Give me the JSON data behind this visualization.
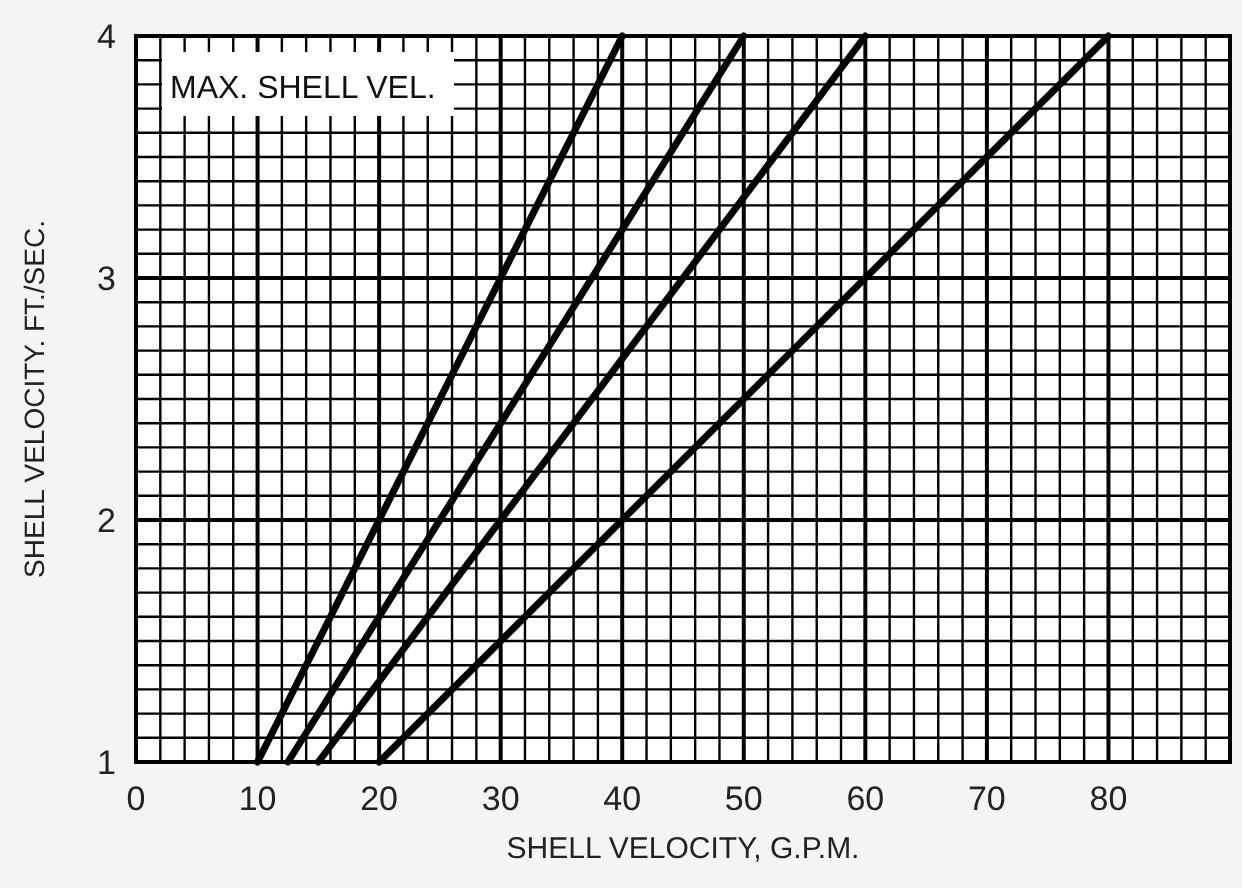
{
  "chart_data": {
    "type": "line",
    "xlabel": "SHELL VELOCITY, G.P.M.",
    "ylabel": "SHELL VELOCITY. FT./SEC.",
    "annotations": [
      "MAX. SHELL VEL."
    ],
    "xlim": [
      0,
      90
    ],
    "ylim": [
      1,
      4
    ],
    "xticks": [
      0,
      {
        "value": 2,
        "label": null
      },
      {
        "value": 4,
        "label": null
      },
      {
        "value": 6,
        "label": null
      },
      {
        "value": 8,
        "label": null
      },
      10,
      {
        "value": 12,
        "label": null
      },
      {
        "value": 14,
        "label": null
      },
      {
        "value": 16,
        "label": null
      },
      {
        "value": 18,
        "label": null
      },
      20,
      {
        "value": 22,
        "label": null
      },
      {
        "value": 24,
        "label": null
      },
      {
        "value": 26,
        "label": null
      },
      {
        "value": 28,
        "label": null
      },
      30,
      {
        "value": 32,
        "label": null
      },
      {
        "value": 34,
        "label": null
      },
      {
        "value": 36,
        "label": null
      },
      {
        "value": 38,
        "label": null
      },
      40,
      {
        "value": 42,
        "label": null
      },
      {
        "value": 44,
        "label": null
      },
      {
        "value": 46,
        "label": null
      },
      {
        "value": 48,
        "label": null
      },
      50,
      {
        "value": 52,
        "label": null
      },
      {
        "value": 54,
        "label": null
      },
      {
        "value": 56,
        "label": null
      },
      {
        "value": 58,
        "label": null
      },
      60,
      {
        "value": 62,
        "label": null
      },
      {
        "value": 64,
        "label": null
      },
      {
        "value": 66,
        "label": null
      },
      {
        "value": 68,
        "label": null
      },
      70,
      {
        "value": 72,
        "label": null
      },
      {
        "value": 74,
        "label": null
      },
      {
        "value": 76,
        "label": null
      },
      {
        "value": 78,
        "label": null
      },
      80,
      {
        "value": 82,
        "label": null
      },
      {
        "value": 84,
        "label": null
      },
      {
        "value": 86,
        "label": null
      },
      {
        "value": 88,
        "label": null
      },
      {
        "value": 90,
        "label": null
      }
    ],
    "yticks": [
      1,
      {
        "value": 1.1,
        "label": null
      },
      {
        "value": 1.2,
        "label": null
      },
      {
        "value": 1.3,
        "label": null
      },
      {
        "value": 1.4,
        "label": null
      },
      {
        "value": 1.5,
        "label": null
      },
      {
        "value": 1.6,
        "label": null
      },
      {
        "value": 1.7,
        "label": null
      },
      {
        "value": 1.8,
        "label": null
      },
      {
        "value": 1.9,
        "label": null
      },
      2,
      {
        "value": 2.1,
        "label": null
      },
      {
        "value": 2.2,
        "label": null
      },
      {
        "value": 2.3,
        "label": null
      },
      {
        "value": 2.4,
        "label": null
      },
      {
        "value": 2.5,
        "label": null
      },
      {
        "value": 2.6,
        "label": null
      },
      {
        "value": 2.7,
        "label": null
      },
      {
        "value": 2.8,
        "label": null
      },
      {
        "value": 2.9,
        "label": null
      },
      3,
      {
        "value": 3.1,
        "label": null
      },
      {
        "value": 3.2,
        "label": null
      },
      {
        "value": 3.3,
        "label": null
      },
      {
        "value": 3.4,
        "label": null
      },
      {
        "value": 3.5,
        "label": null
      },
      {
        "value": 3.6,
        "label": null
      },
      {
        "value": 3.7,
        "label": null
      },
      {
        "value": 3.8,
        "label": null
      },
      {
        "value": 3.9,
        "label": null
      },
      4
    ],
    "grid": true,
    "marker": "none",
    "line_style": "solid",
    "series": [
      {
        "color": "#000000",
        "x": [
          10,
          40
        ],
        "values": [
          1,
          4
        ]
      },
      {
        "color": "#000000",
        "x": [
          12.5,
          50
        ],
        "values": [
          1,
          4
        ]
      },
      {
        "color": "#000000",
        "x": [
          15,
          60
        ],
        "values": [
          1,
          4
        ]
      },
      {
        "color": "#000000",
        "x": [
          20,
          80
        ],
        "values": [
          1,
          4
        ]
      }
    ]
  }
}
